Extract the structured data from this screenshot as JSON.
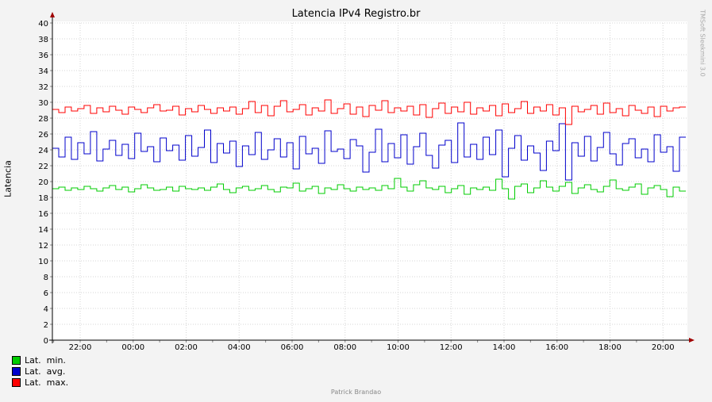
{
  "chart_data": {
    "type": "line",
    "title": "Latencia IPv4 Registro.br",
    "xlabel": "",
    "ylabel": "Latencia",
    "ylim": [
      0,
      40
    ],
    "y_ticks": [
      0,
      2,
      4,
      6,
      8,
      10,
      12,
      14,
      16,
      18,
      20,
      22,
      24,
      26,
      28,
      30,
      32,
      34,
      36,
      38,
      40
    ],
    "x_tick_labels": [
      "22:00",
      "00:00",
      "02:00",
      "04:00",
      "06:00",
      "08:00",
      "10:00",
      "12:00",
      "14:00",
      "16:00",
      "18:00",
      "20:00"
    ],
    "grid": true,
    "legend_position": "bottom-left",
    "series": [
      {
        "name": "Lat.  min.",
        "color": "#00cc00",
        "summary": {
          "typical": 19.0,
          "min": 17.5,
          "max": 20.5
        },
        "values": [
          19.1,
          19.3,
          18.9,
          19.2,
          19.0,
          19.4,
          19.1,
          18.8,
          19.2,
          19.5,
          19.0,
          19.3,
          18.7,
          19.1,
          19.6,
          19.2,
          18.9,
          19.0,
          19.3,
          18.8,
          19.4,
          19.1,
          19.0,
          19.2,
          18.9,
          19.3,
          19.7,
          19.0,
          18.6,
          19.2,
          19.4,
          18.9,
          19.1,
          19.5,
          19.0,
          18.7,
          19.3,
          19.2,
          19.8,
          18.8,
          19.1,
          19.4,
          18.5,
          19.2,
          19.0,
          19.6,
          19.1,
          18.8,
          19.3,
          19.0,
          19.2,
          18.9,
          19.5,
          19.1,
          20.4,
          19.3,
          18.8,
          19.6,
          20.1,
          19.2,
          19.0,
          19.4,
          18.6,
          19.1,
          19.5,
          18.4,
          19.2,
          19.0,
          19.3,
          18.9,
          20.3,
          19.1,
          17.8,
          19.4,
          19.7,
          18.6,
          19.2,
          20.1,
          19.3,
          18.8,
          19.4,
          19.9,
          18.5,
          19.2,
          19.6,
          19.0,
          18.7,
          19.4,
          20.2,
          19.1,
          18.9,
          19.3,
          19.7,
          18.4,
          19.2,
          19.5,
          19.0,
          18.1,
          19.3,
          18.8
        ]
      },
      {
        "name": "Lat.  avg.",
        "color": "#0000cc",
        "summary": {
          "typical": 24.0,
          "min": 20.2,
          "max": 27.4
        },
        "values": [
          24.2,
          23.1,
          25.6,
          22.8,
          24.9,
          23.5,
          26.3,
          22.6,
          24.1,
          25.2,
          23.3,
          24.7,
          22.9,
          26.1,
          23.8,
          24.4,
          22.5,
          25.5,
          23.9,
          24.6,
          22.7,
          25.8,
          23.2,
          24.3,
          26.5,
          22.4,
          24.8,
          23.6,
          25.1,
          21.9,
          24.5,
          23.4,
          26.2,
          22.8,
          24.0,
          25.4,
          23.1,
          24.9,
          21.6,
          25.7,
          23.5,
          24.2,
          22.3,
          26.4,
          23.8,
          24.1,
          22.9,
          25.3,
          24.5,
          21.2,
          23.7,
          26.6,
          22.5,
          24.8,
          23.0,
          25.9,
          22.2,
          24.4,
          26.1,
          23.3,
          21.7,
          24.6,
          25.2,
          22.4,
          27.4,
          23.1,
          24.7,
          22.8,
          25.6,
          23.4,
          26.5,
          20.6,
          24.2,
          25.8,
          22.7,
          24.5,
          23.6,
          21.4,
          25.1,
          23.9,
          27.3,
          20.2,
          24.9,
          23.2,
          25.7,
          22.6,
          24.3,
          26.2,
          23.5,
          22.1,
          24.8,
          25.4,
          23.0,
          24.1,
          22.5,
          25.9,
          23.7,
          24.4,
          21.3,
          25.6
        ]
      },
      {
        "name": "Lat.  max.",
        "color": "#ff0000",
        "summary": {
          "typical": 29.0,
          "min": 27.2,
          "max": 30.4
        },
        "values": [
          29.1,
          28.7,
          29.4,
          28.9,
          29.2,
          29.6,
          28.6,
          29.3,
          28.8,
          29.5,
          29.0,
          28.5,
          29.4,
          29.1,
          28.7,
          29.3,
          29.7,
          28.9,
          29.0,
          29.5,
          28.4,
          29.2,
          28.8,
          29.6,
          29.1,
          28.6,
          29.3,
          28.9,
          29.4,
          28.5,
          29.2,
          30.1,
          28.7,
          29.6,
          28.3,
          29.5,
          30.2,
          28.8,
          29.1,
          29.7,
          28.4,
          29.3,
          28.9,
          30.3,
          28.6,
          29.2,
          29.8,
          28.5,
          29.4,
          28.2,
          29.6,
          29.0,
          30.2,
          28.7,
          29.3,
          28.9,
          29.5,
          28.4,
          29.7,
          28.1,
          29.2,
          29.9,
          28.6,
          29.4,
          28.8,
          30.0,
          28.5,
          29.3,
          28.9,
          29.6,
          28.3,
          29.8,
          28.7,
          29.2,
          30.1,
          28.6,
          29.4,
          28.9,
          29.7,
          28.4,
          29.3,
          27.2,
          29.5,
          28.8,
          29.1,
          29.6,
          28.5,
          29.9,
          28.7,
          29.2,
          28.3,
          29.6,
          29.0,
          28.6,
          29.4,
          28.2,
          29.5,
          28.9,
          29.3,
          29.4
        ]
      }
    ]
  },
  "watermark": "TMSoft Sleekmini 3.0",
  "footer": "Patrick Brandao"
}
